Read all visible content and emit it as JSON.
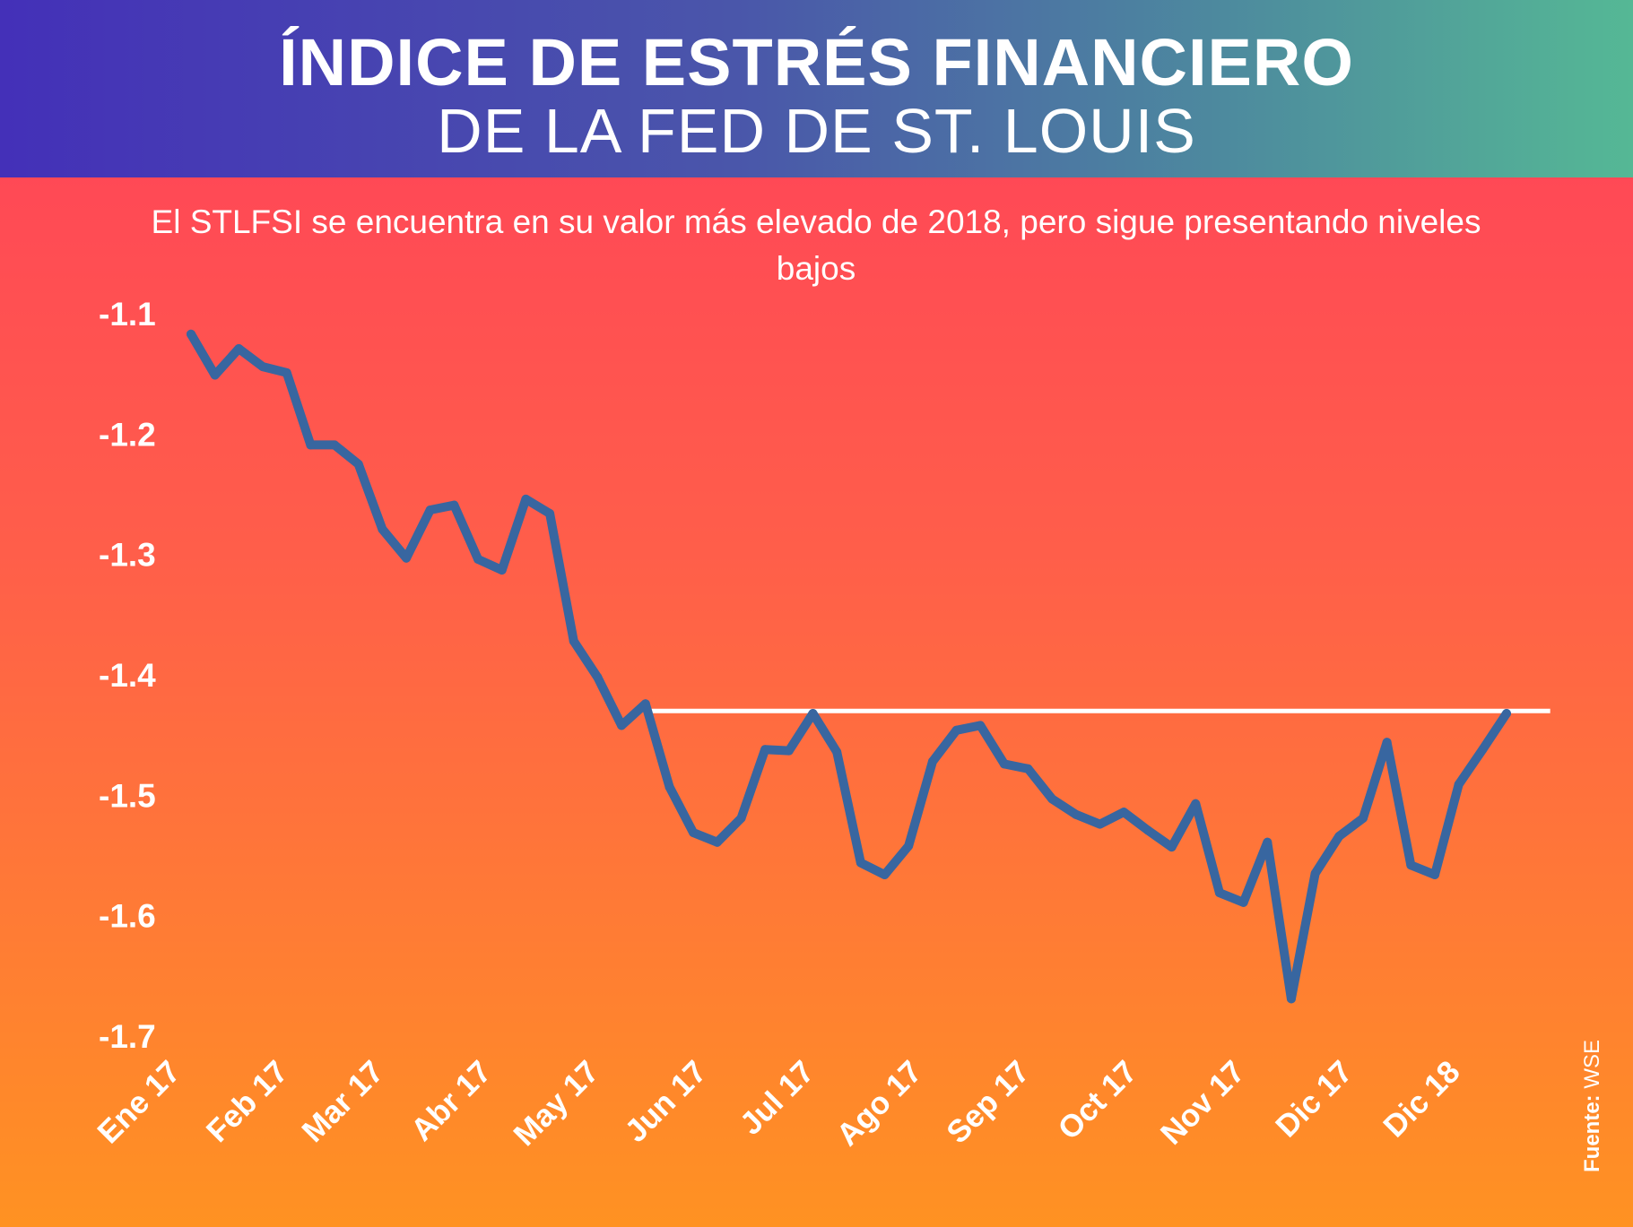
{
  "header": {
    "title_line1": "ÍNDICE DE ESTRÉS FINANCIERO",
    "title_line2": "DE LA FED DE ST. LOUIS"
  },
  "subtitle": "El STLFSI se encuentra en su valor más elevado de 2018, pero sigue presentando niveles bajos",
  "source": {
    "label": "Fuente:",
    "value": "WSE"
  },
  "colors": {
    "line": "#3866a0",
    "reference_line": "#ffffff",
    "text": "#ffffff"
  },
  "chart_data": {
    "type": "line",
    "title": "ÍNDICE DE ESTRÉS FINANCIERO DE LA FED DE ST. LOUIS",
    "ylabel": "",
    "xlabel": "",
    "ylim": [
      -1.7,
      -1.1
    ],
    "y_ticks": [
      "-1.1",
      "-1.2",
      "-1.3",
      "-1.4",
      "-1.5",
      "-1.6",
      "-1.7"
    ],
    "y_tick_values": [
      -1.1,
      -1.2,
      -1.3,
      -1.4,
      -1.5,
      -1.6,
      -1.7
    ],
    "x_tick_labels": [
      "Ene 17",
      "Feb 17",
      "Mar 17",
      "Abr 17",
      "May 17",
      "Jun 17",
      "Jul 17",
      "Ago 17",
      "Sep 17",
      "Oct 17",
      "Nov 17",
      "Dic 17",
      "Dic 18"
    ],
    "x_tick_indices": [
      0,
      4.5,
      8.5,
      13,
      17.5,
      22,
      26.5,
      31,
      35.5,
      40,
      44.5,
      49,
      53.5
    ],
    "series": [
      {
        "name": "STLFSI",
        "values": [
          -1.117,
          -1.151,
          -1.129,
          -1.144,
          -1.149,
          -1.209,
          -1.209,
          -1.225,
          -1.279,
          -1.303,
          -1.263,
          -1.259,
          -1.304,
          -1.313,
          -1.254,
          -1.266,
          -1.372,
          -1.402,
          -1.442,
          -1.424,
          -1.493,
          -1.531,
          -1.539,
          -1.519,
          -1.462,
          -1.463,
          -1.432,
          -1.464,
          -1.556,
          -1.566,
          -1.542,
          -1.472,
          -1.446,
          -1.442,
          -1.474,
          -1.478,
          -1.503,
          -1.516,
          -1.524,
          -1.514,
          -1.529,
          -1.543,
          -1.507,
          -1.581,
          -1.589,
          -1.539,
          -1.669,
          -1.565,
          -1.534,
          -1.519,
          -1.456,
          -1.558,
          -1.566,
          -1.491,
          -1.462,
          -1.432
        ]
      }
    ],
    "reference_line": {
      "value": -1.43,
      "start_index": 19,
      "end_index": 56
    },
    "grid": false,
    "legend": "none"
  }
}
